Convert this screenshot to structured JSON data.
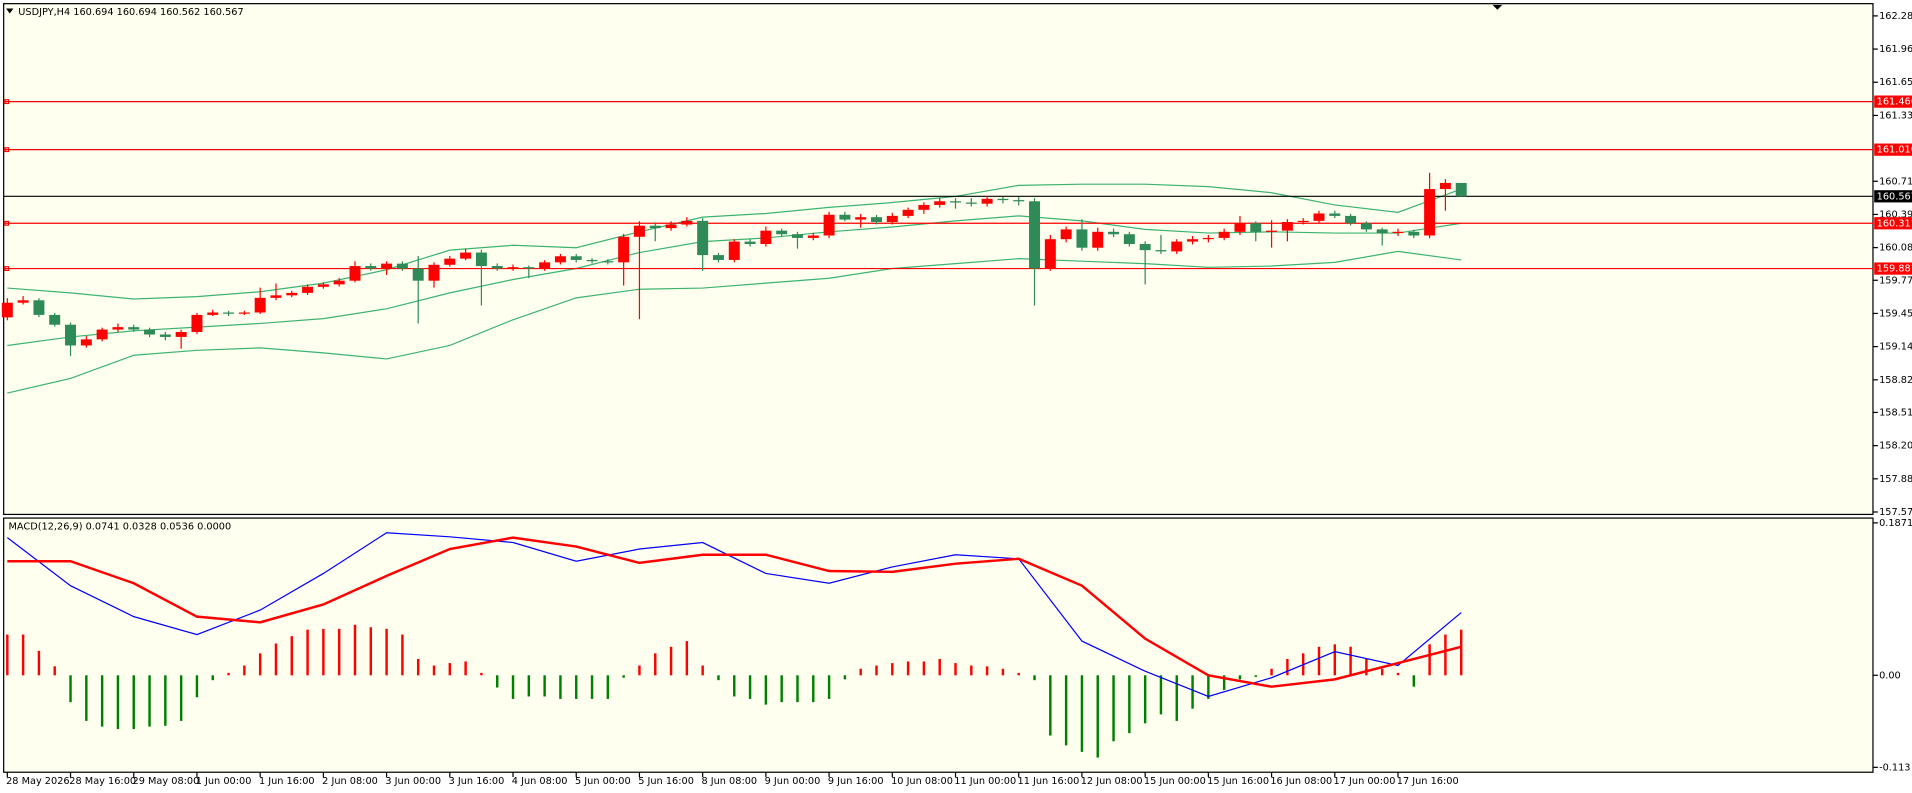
{
  "chart_data": {
    "type": "candlestick",
    "header": "USDJPY,H4  160.694 160.694 160.562 160.567",
    "up_color": "#ff0000",
    "down_color": "#2e8b57",
    "open": [
      159.418,
      159.557,
      159.58,
      159.441,
      159.348,
      159.151,
      159.209,
      159.302,
      159.325,
      159.302,
      159.255,
      159.232,
      159.279,
      159.441,
      159.464,
      159.453,
      159.464,
      159.603,
      159.627,
      159.65,
      159.708,
      159.731,
      159.766,
      159.905,
      159.882,
      159.928,
      159.882,
      159.766,
      159.917,
      159.975,
      160.033,
      159.905,
      159.882,
      159.894,
      159.882,
      159.94,
      159.998,
      159.963,
      159.951,
      159.94,
      160.183,
      160.288,
      160.265,
      160.299,
      160.334,
      160.009,
      159.963,
      160.137,
      160.114,
      160.241,
      160.207,
      160.172,
      160.195,
      160.392,
      160.346,
      160.369,
      160.323,
      160.381,
      160.439,
      160.485,
      160.52,
      160.508,
      160.497,
      160.543,
      160.531,
      160.52,
      159.882,
      160.16,
      160.253,
      160.079,
      160.23,
      160.207,
      160.114,
      160.056,
      160.044,
      160.137,
      160.16,
      160.172,
      160.23,
      160.311,
      160.23,
      160.241,
      160.323,
      160.334,
      160.404,
      160.381,
      160.311,
      160.253,
      160.218,
      160.23,
      160.195,
      160.636,
      160.694
    ],
    "high": [
      159.6,
      159.62,
      159.6,
      159.46,
      159.37,
      159.24,
      159.32,
      159.36,
      159.35,
      159.32,
      159.28,
      159.3,
      159.46,
      159.49,
      159.48,
      159.48,
      159.7,
      159.74,
      159.67,
      159.73,
      159.75,
      159.79,
      159.95,
      159.93,
      159.95,
      159.95,
      160.0,
      159.94,
      160.0,
      160.07,
      160.06,
      159.93,
      159.92,
      159.91,
      159.96,
      160.02,
      160.02,
      159.98,
      159.97,
      160.21,
      160.33,
      160.32,
      160.33,
      160.37,
      160.36,
      160.03,
      160.16,
      160.16,
      160.28,
      160.26,
      160.23,
      160.22,
      160.42,
      160.42,
      160.4,
      160.39,
      160.41,
      160.46,
      160.51,
      160.55,
      160.55,
      160.55,
      160.57,
      160.56,
      160.56,
      160.55,
      160.2,
      160.28,
      160.35,
      160.27,
      160.26,
      160.23,
      160.14,
      160.2,
      160.16,
      160.19,
      160.2,
      160.26,
      160.38,
      160.33,
      160.34,
      160.35,
      160.36,
      160.43,
      160.43,
      160.4,
      160.33,
      160.27,
      160.26,
      160.25,
      160.79,
      160.73,
      160.694
    ],
    "low": [
      159.39,
      159.54,
      159.42,
      159.33,
      159.05,
      159.13,
      159.19,
      159.28,
      159.28,
      159.23,
      159.2,
      159.12,
      159.26,
      159.43,
      159.43,
      159.44,
      159.45,
      159.58,
      159.61,
      159.63,
      159.69,
      159.71,
      159.75,
      159.86,
      159.82,
      159.86,
      159.36,
      159.7,
      159.9,
      159.96,
      159.53,
      159.86,
      159.86,
      159.79,
      159.86,
      159.92,
      159.94,
      159.93,
      159.92,
      159.72,
      159.4,
      160.14,
      160.24,
      160.28,
      159.86,
      159.94,
      159.94,
      160.09,
      160.09,
      160.19,
      160.07,
      160.15,
      160.17,
      160.33,
      160.27,
      160.3,
      160.3,
      160.36,
      160.4,
      160.46,
      160.45,
      160.47,
      160.47,
      160.5,
      160.48,
      159.53,
      159.86,
      160.13,
      160.05,
      160.05,
      160.18,
      160.09,
      159.73,
      160.02,
      160.02,
      160.11,
      160.13,
      160.15,
      160.2,
      160.14,
      160.08,
      160.14,
      160.3,
      160.31,
      160.36,
      160.29,
      160.23,
      160.1,
      160.19,
      160.17,
      160.17,
      160.43,
      160.562
    ],
    "close": [
      159.557,
      159.58,
      159.441,
      159.348,
      159.151,
      159.209,
      159.302,
      159.325,
      159.302,
      159.255,
      159.232,
      159.279,
      159.441,
      159.464,
      159.453,
      159.464,
      159.603,
      159.627,
      159.65,
      159.708,
      159.731,
      159.766,
      159.905,
      159.882,
      159.928,
      159.882,
      159.766,
      159.917,
      159.975,
      160.033,
      159.905,
      159.882,
      159.894,
      159.882,
      159.94,
      159.998,
      159.963,
      159.951,
      159.94,
      160.183,
      160.288,
      160.265,
      160.299,
      160.334,
      160.009,
      159.963,
      160.137,
      160.114,
      160.241,
      160.207,
      160.172,
      160.195,
      160.392,
      160.346,
      160.369,
      160.323,
      160.381,
      160.439,
      160.485,
      160.52,
      160.508,
      160.497,
      160.543,
      160.531,
      160.52,
      159.882,
      160.16,
      160.253,
      160.079,
      160.23,
      160.207,
      160.114,
      160.056,
      160.044,
      160.137,
      160.16,
      160.172,
      160.23,
      160.311,
      160.23,
      160.241,
      160.323,
      160.334,
      160.404,
      160.381,
      160.311,
      160.253,
      160.218,
      160.23,
      160.195,
      160.636,
      160.694,
      160.567
    ],
    "ylim": [
      157.547,
      162.396
    ],
    "yticks": [
      {
        "value": 162.28,
        "label": "162.280"
      },
      161.965,
      {
        "value": 161.65,
        "label": "161.650"
      },
      161.335,
      {
        "value": 160.71,
        "label": "160.710"
      },
      160.395,
      {
        "value": 160.08,
        "label": "160.080"
      },
      {
        "value": 159.77,
        "label": "159.770"
      },
      159.455,
      {
        "value": 159.14,
        "label": "159.140"
      },
      158.825,
      158.515,
      {
        "value": 158.2,
        "label": "158.200"
      },
      157.885,
      {
        "value": 157.57,
        "label": "157.570"
      }
    ],
    "xticks": [
      {
        "value": 0,
        "label": "28 May 2026"
      },
      {
        "value": 4,
        "label": "28 May 16:00"
      },
      {
        "value": 8,
        "label": "29 May 08:00"
      },
      {
        "value": 12,
        "label": "1 Jun 00:00"
      },
      {
        "value": 16,
        "label": "1 Jun 16:00"
      },
      {
        "value": 20,
        "label": "2 Jun 08:00"
      },
      {
        "value": 24,
        "label": "3 Jun 00:00"
      },
      {
        "value": 28,
        "label": "3 Jun 16:00"
      },
      {
        "value": 32,
        "label": "4 Jun 08:00"
      },
      {
        "value": 36,
        "label": "5 Jun 00:00"
      },
      {
        "value": 40,
        "label": "5 Jun 16:00"
      },
      {
        "value": 44,
        "label": "8 Jun 08:00"
      },
      {
        "value": 48,
        "label": "9 Jun 00:00"
      },
      {
        "value": 52,
        "label": "9 Jun 16:00"
      },
      {
        "value": 56,
        "label": "10 Jun 08:00"
      },
      {
        "value": 60,
        "label": "11 Jun 00:00"
      },
      {
        "value": 64,
        "label": "11 Jun 16:00"
      },
      {
        "value": 68,
        "label": "12 Jun 08:00"
      },
      {
        "value": 72,
        "label": "15 Jun 00:00"
      },
      {
        "value": 76,
        "label": "15 Jun 16:00"
      },
      {
        "value": 80,
        "label": "16 Jun 08:00"
      },
      {
        "value": 84,
        "label": "17 Jun 00:00"
      },
      {
        "value": 88,
        "label": "17 Jun 16:00"
      }
    ],
    "levels": [
      161.466,
      {
        "value": 161.01,
        "label": "161.010"
      },
      160.311,
      159.881
    ],
    "level_color": "#ff0000",
    "current": {
      "value": 160.567,
      "color": "#000000"
    },
    "bands": {
      "color": "#3cb371",
      "x": [
        0,
        4,
        8,
        12,
        16,
        20,
        24,
        28,
        32,
        36,
        40,
        44,
        48,
        52,
        56,
        60,
        64,
        68,
        72,
        76,
        80,
        84,
        88,
        92
      ],
      "upper": [
        159.696,
        159.65,
        159.592,
        159.615,
        159.661,
        159.743,
        159.87,
        160.056,
        160.102,
        160.079,
        160.23,
        160.369,
        160.404,
        160.462,
        160.508,
        160.566,
        160.671,
        160.682,
        160.682,
        160.659,
        160.601,
        160.485,
        160.415,
        160.636
      ],
      "middle": [
        159.151,
        159.232,
        159.29,
        159.325,
        159.36,
        159.406,
        159.499,
        159.65,
        159.777,
        159.882,
        160.033,
        160.137,
        160.172,
        160.23,
        160.276,
        160.334,
        160.381,
        160.334,
        160.253,
        160.218,
        160.23,
        160.218,
        160.218,
        160.311
      ],
      "lower": [
        158.699,
        158.838,
        159.058,
        159.105,
        159.128,
        159.081,
        159.023,
        159.151,
        159.395,
        159.603,
        159.685,
        159.696,
        159.743,
        159.789,
        159.882,
        159.928,
        159.975,
        159.951,
        159.928,
        159.893,
        159.905,
        159.94,
        160.044,
        159.963
      ]
    },
    "indicator": {
      "type": "macd",
      "title": "MACD(12,26,9) 0.0741 0.0328 0.0536 0.0000",
      "ylim": [
        -0.119,
        0.193
      ],
      "yticks": [
        0.1871,
        {
          "value": 0,
          "label": "0.00"
        },
        -0.113
      ],
      "up_color": "#ff0000",
      "down_color": "#008000",
      "histogram": [
        0.05,
        0.05,
        0.03,
        0.011,
        -0.033,
        -0.056,
        -0.063,
        -0.066,
        -0.066,
        -0.063,
        -0.062,
        -0.056,
        -0.027,
        -0.006,
        0.003,
        0.012,
        0.027,
        0.039,
        0.048,
        0.056,
        0.057,
        0.057,
        0.062,
        0.059,
        0.057,
        0.05,
        0.02,
        0.012,
        0.015,
        0.017,
        0.003,
        -0.015,
        -0.029,
        -0.026,
        -0.026,
        -0.029,
        -0.029,
        -0.029,
        -0.029,
        -0.003,
        0.012,
        0.027,
        0.035,
        0.042,
        0.012,
        -0.006,
        -0.026,
        -0.029,
        -0.036,
        -0.033,
        -0.033,
        -0.033,
        -0.029,
        -0.005,
        0.008,
        0.012,
        0.015,
        0.017,
        0.017,
        0.02,
        0.015,
        0.012,
        0.011,
        0.008,
        0.003,
        -0.006,
        -0.074,
        -0.086,
        -0.094,
        -0.101,
        -0.081,
        -0.071,
        -0.059,
        -0.048,
        -0.056,
        -0.041,
        -0.029,
        -0.018,
        -0.005,
        -0.002,
        0.008,
        0.02,
        0.027,
        0.035,
        0.038,
        0.035,
        0.02,
        0.008,
        0.003,
        -0.014,
        0.038,
        0.05,
        0.056
      ],
      "lines": [
        {
          "color": "#0000ff",
          "width": 1,
          "x": [
            0,
            4,
            8,
            12,
            16,
            20,
            24,
            28,
            32,
            36,
            40,
            44,
            48,
            52,
            56,
            60,
            64,
            68,
            72,
            76,
            80,
            84,
            88,
            92
          ],
          "values": [
            0.169,
            0.11,
            0.072,
            0.05,
            0.08,
            0.125,
            0.175,
            0.17,
            0.163,
            0.14,
            0.155,
            0.163,
            0.125,
            0.113,
            0.133,
            0.148,
            0.143,
            0.042,
            0.005,
            -0.026,
            -0.003,
            0.029,
            0.012,
            0.077
          ]
        },
        {
          "color": "#ff0000",
          "width": 2,
          "x": [
            0,
            4,
            8,
            12,
            16,
            20,
            24,
            28,
            32,
            36,
            40,
            44,
            48,
            52,
            56,
            60,
            64,
            68,
            72,
            76,
            80,
            84,
            88,
            92
          ],
          "values": [
            0.14,
            0.14,
            0.113,
            0.072,
            0.065,
            0.087,
            0.122,
            0.155,
            0.169,
            0.158,
            0.138,
            0.148,
            0.148,
            0.128,
            0.127,
            0.137,
            0.143,
            0.11,
            0.045,
            0,
            -0.014,
            -0.005,
            0.015,
            0.035
          ]
        }
      ]
    }
  }
}
